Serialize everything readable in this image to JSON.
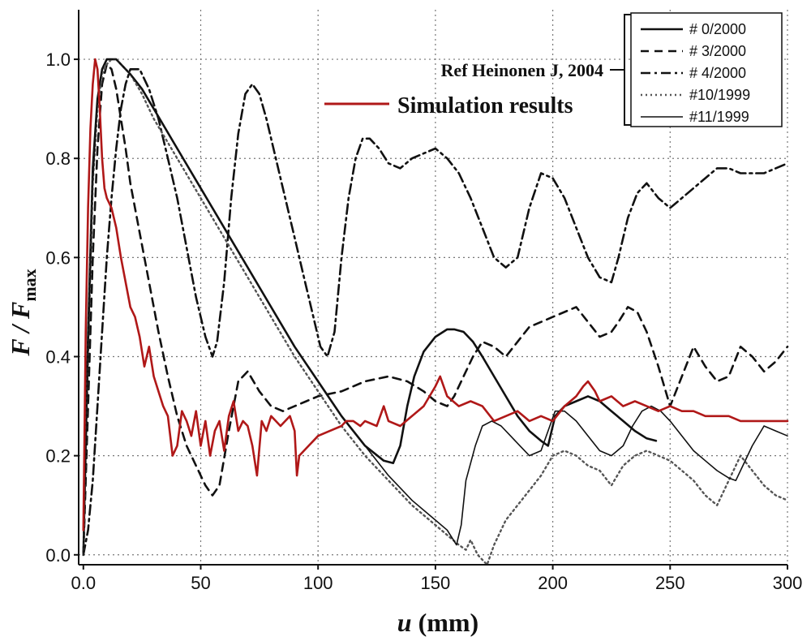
{
  "chart_data": {
    "type": "line",
    "xlabel": "u (mm)",
    "ylabel": "F / F_max",
    "ylabel_parts": {
      "main": "F / F",
      "sub": "max"
    },
    "xlabel_parts": {
      "var": "u",
      "unit": " (mm)"
    },
    "xlim": [
      -2,
      300
    ],
    "ylim": [
      -0.02,
      1.1
    ],
    "xticks": [
      0,
      50,
      100,
      150,
      200,
      250,
      300
    ],
    "xtick_labels": [
      "0.0",
      "50",
      "100",
      "150",
      "200",
      "250",
      "300"
    ],
    "yticks": [
      0.0,
      0.2,
      0.4,
      0.6,
      0.8,
      1.0
    ],
    "ytick_labels": [
      "0.0",
      "0.2",
      "0.4",
      "0.6",
      "0.8",
      "1.0"
    ],
    "grid": true,
    "legend_position": "top-right",
    "annotations": {
      "reference_label": "Ref Heinonen J, 2004",
      "simulation_label": "Simulation results"
    },
    "series": [
      {
        "name": "# 0/2000",
        "style": "solid-thick",
        "color": "#111111",
        "x": [
          0,
          2,
          4,
          6,
          8,
          10,
          12,
          14,
          16,
          18,
          20,
          25,
          30,
          40,
          50,
          60,
          70,
          80,
          90,
          100,
          110,
          120,
          128,
          132,
          135,
          138,
          141,
          145,
          150,
          155,
          158,
          162,
          166,
          170,
          175,
          180,
          185,
          190,
          195,
          198,
          201,
          205,
          210,
          215,
          220,
          225,
          230,
          235,
          240,
          244
        ],
        "y": [
          0.0,
          0.45,
          0.78,
          0.92,
          0.98,
          1.0,
          1.0,
          1.0,
          0.99,
          0.98,
          0.97,
          0.94,
          0.9,
          0.82,
          0.74,
          0.66,
          0.58,
          0.5,
          0.42,
          0.35,
          0.28,
          0.22,
          0.19,
          0.185,
          0.22,
          0.3,
          0.36,
          0.41,
          0.44,
          0.455,
          0.455,
          0.45,
          0.43,
          0.4,
          0.36,
          0.32,
          0.28,
          0.25,
          0.23,
          0.22,
          0.28,
          0.3,
          0.31,
          0.32,
          0.31,
          0.29,
          0.27,
          0.25,
          0.235,
          0.23
        ]
      },
      {
        "name": "# 3/2000",
        "style": "dashed",
        "color": "#111111",
        "x": [
          0,
          2,
          4,
          6,
          8,
          10,
          12,
          14,
          16,
          18,
          20,
          24,
          28,
          32,
          36,
          40,
          44,
          48,
          52,
          55,
          58,
          62,
          66,
          70,
          75,
          80,
          85,
          90,
          95,
          100,
          110,
          120,
          130,
          138,
          145,
          150,
          155,
          158,
          162,
          166,
          170,
          175,
          180,
          185,
          190,
          195,
          200,
          205,
          210,
          215,
          220,
          225,
          228,
          232,
          236,
          240,
          245,
          250,
          255,
          260,
          265,
          270,
          275,
          280,
          285,
          290,
          295,
          300
        ],
        "y": [
          0.0,
          0.3,
          0.6,
          0.82,
          0.95,
          0.99,
          0.98,
          0.94,
          0.88,
          0.82,
          0.75,
          0.65,
          0.55,
          0.45,
          0.36,
          0.28,
          0.22,
          0.18,
          0.14,
          0.12,
          0.14,
          0.25,
          0.35,
          0.37,
          0.33,
          0.3,
          0.29,
          0.3,
          0.31,
          0.32,
          0.33,
          0.35,
          0.36,
          0.35,
          0.33,
          0.31,
          0.3,
          0.32,
          0.36,
          0.4,
          0.43,
          0.42,
          0.4,
          0.43,
          0.46,
          0.47,
          0.48,
          0.49,
          0.5,
          0.47,
          0.44,
          0.45,
          0.47,
          0.5,
          0.49,
          0.45,
          0.38,
          0.3,
          0.36,
          0.42,
          0.38,
          0.35,
          0.36,
          0.42,
          0.4,
          0.37,
          0.39,
          0.42
        ]
      },
      {
        "name": "# 4/2000",
        "style": "dashdot",
        "color": "#111111",
        "x": [
          0,
          2,
          4,
          6,
          8,
          10,
          12,
          14,
          16,
          18,
          20,
          24,
          28,
          32,
          36,
          40,
          44,
          48,
          52,
          55,
          57,
          60,
          63,
          66,
          69,
          72,
          75,
          78,
          82,
          86,
          90,
          94,
          98,
          101,
          104,
          107,
          110,
          113,
          116,
          119,
          122,
          126,
          130,
          135,
          140,
          145,
          150,
          155,
          160,
          165,
          170,
          175,
          180,
          185,
          190,
          195,
          200,
          205,
          210,
          215,
          220,
          225,
          228,
          232,
          236,
          240,
          245,
          250,
          255,
          260,
          265,
          270,
          275,
          280,
          285,
          290,
          295,
          300
        ],
        "y": [
          0.0,
          0.05,
          0.15,
          0.3,
          0.45,
          0.6,
          0.72,
          0.82,
          0.9,
          0.95,
          0.98,
          0.98,
          0.94,
          0.88,
          0.8,
          0.72,
          0.62,
          0.52,
          0.44,
          0.4,
          0.43,
          0.55,
          0.72,
          0.85,
          0.93,
          0.95,
          0.93,
          0.88,
          0.8,
          0.72,
          0.64,
          0.56,
          0.48,
          0.42,
          0.4,
          0.45,
          0.6,
          0.72,
          0.8,
          0.84,
          0.84,
          0.82,
          0.79,
          0.78,
          0.8,
          0.81,
          0.82,
          0.8,
          0.77,
          0.72,
          0.66,
          0.6,
          0.58,
          0.6,
          0.7,
          0.77,
          0.76,
          0.72,
          0.66,
          0.6,
          0.56,
          0.55,
          0.6,
          0.68,
          0.73,
          0.75,
          0.72,
          0.7,
          0.72,
          0.74,
          0.76,
          0.78,
          0.78,
          0.77,
          0.77,
          0.77,
          0.78,
          0.79
        ]
      },
      {
        "name": "#10/1999",
        "style": "dotted",
        "color": "#555555",
        "x": [
          0,
          2,
          4,
          6,
          8,
          10,
          12,
          14,
          16,
          18,
          20,
          25,
          30,
          40,
          50,
          60,
          70,
          80,
          90,
          100,
          110,
          120,
          130,
          140,
          150,
          155,
          160,
          163,
          165,
          168,
          170,
          172,
          175,
          180,
          185,
          190,
          195,
          200,
          205,
          210,
          215,
          220,
          225,
          230,
          235,
          240,
          245,
          250,
          255,
          260,
          265,
          270,
          275,
          280,
          285,
          290,
          295,
          300
        ],
        "y": [
          0.0,
          0.4,
          0.75,
          0.9,
          0.97,
          0.99,
          1.0,
          1.0,
          0.99,
          0.98,
          0.97,
          0.93,
          0.88,
          0.8,
          0.72,
          0.64,
          0.56,
          0.48,
          0.4,
          0.33,
          0.26,
          0.2,
          0.15,
          0.1,
          0.06,
          0.04,
          0.02,
          0.01,
          0.03,
          0.0,
          -0.01,
          -0.02,
          0.02,
          0.07,
          0.1,
          0.13,
          0.16,
          0.2,
          0.21,
          0.2,
          0.18,
          0.17,
          0.14,
          0.18,
          0.2,
          0.21,
          0.2,
          0.19,
          0.17,
          0.15,
          0.12,
          0.1,
          0.15,
          0.2,
          0.17,
          0.14,
          0.12,
          0.11
        ]
      },
      {
        "name": "#11/1999",
        "style": "solid-thin",
        "color": "#111111",
        "x": [
          0,
          2,
          4,
          6,
          8,
          10,
          12,
          14,
          16,
          18,
          20,
          25,
          30,
          40,
          50,
          60,
          70,
          80,
          90,
          100,
          110,
          120,
          130,
          140,
          150,
          155,
          159,
          161,
          163,
          167,
          170,
          174,
          178,
          182,
          186,
          190,
          195,
          198,
          201,
          205,
          210,
          215,
          220,
          225,
          230,
          234,
          238,
          242,
          246,
          250,
          255,
          260,
          265,
          270,
          275,
          278,
          281,
          285,
          290,
          295,
          300
        ],
        "y": [
          0.0,
          0.4,
          0.75,
          0.92,
          0.98,
          1.0,
          1.0,
          1.0,
          0.99,
          0.98,
          0.97,
          0.94,
          0.9,
          0.82,
          0.74,
          0.66,
          0.58,
          0.5,
          0.42,
          0.35,
          0.28,
          0.22,
          0.16,
          0.11,
          0.07,
          0.05,
          0.02,
          0.06,
          0.15,
          0.22,
          0.26,
          0.27,
          0.26,
          0.24,
          0.22,
          0.2,
          0.21,
          0.25,
          0.29,
          0.29,
          0.27,
          0.24,
          0.21,
          0.2,
          0.22,
          0.26,
          0.29,
          0.3,
          0.29,
          0.27,
          0.24,
          0.21,
          0.19,
          0.17,
          0.155,
          0.15,
          0.18,
          0.22,
          0.26,
          0.25,
          0.24
        ]
      },
      {
        "name": "Simulation results",
        "style": "solid-red",
        "color": "#b01818",
        "x": [
          0,
          1,
          2,
          3,
          4,
          5,
          6,
          7,
          8,
          9,
          10,
          12,
          14,
          16,
          18,
          20,
          22,
          24,
          26,
          28,
          30,
          32,
          34,
          36,
          37,
          38,
          40,
          42,
          44,
          46,
          48,
          50,
          52,
          54,
          56,
          58,
          60,
          62,
          64,
          66,
          68,
          70,
          72,
          74,
          76,
          78,
          80,
          82,
          84,
          86,
          88,
          90,
          91,
          92,
          94,
          96,
          98,
          100,
          105,
          110,
          112,
          115,
          118,
          120,
          125,
          128,
          130,
          135,
          140,
          145,
          150,
          152,
          155,
          160,
          165,
          170,
          175,
          180,
          185,
          190,
          195,
          200,
          205,
          210,
          213,
          215,
          218,
          220,
          225,
          230,
          235,
          240,
          245,
          250,
          255,
          260,
          265,
          270,
          275,
          280,
          285,
          290,
          295,
          300
        ],
        "y": [
          0.05,
          0.45,
          0.7,
          0.86,
          0.95,
          1.0,
          0.98,
          0.9,
          0.8,
          0.74,
          0.72,
          0.7,
          0.66,
          0.6,
          0.55,
          0.5,
          0.48,
          0.44,
          0.38,
          0.42,
          0.36,
          0.33,
          0.3,
          0.28,
          0.24,
          0.2,
          0.22,
          0.29,
          0.27,
          0.24,
          0.29,
          0.22,
          0.27,
          0.2,
          0.25,
          0.27,
          0.21,
          0.28,
          0.31,
          0.25,
          0.27,
          0.26,
          0.22,
          0.16,
          0.27,
          0.25,
          0.28,
          0.27,
          0.26,
          0.27,
          0.28,
          0.25,
          0.16,
          0.2,
          0.21,
          0.22,
          0.23,
          0.24,
          0.25,
          0.26,
          0.27,
          0.27,
          0.26,
          0.27,
          0.26,
          0.3,
          0.27,
          0.26,
          0.28,
          0.3,
          0.34,
          0.36,
          0.32,
          0.3,
          0.31,
          0.3,
          0.27,
          0.28,
          0.29,
          0.27,
          0.28,
          0.27,
          0.3,
          0.32,
          0.34,
          0.35,
          0.33,
          0.31,
          0.32,
          0.3,
          0.31,
          0.3,
          0.29,
          0.3,
          0.29,
          0.29,
          0.28,
          0.28,
          0.28,
          0.27,
          0.27,
          0.27,
          0.27,
          0.27
        ]
      }
    ]
  }
}
